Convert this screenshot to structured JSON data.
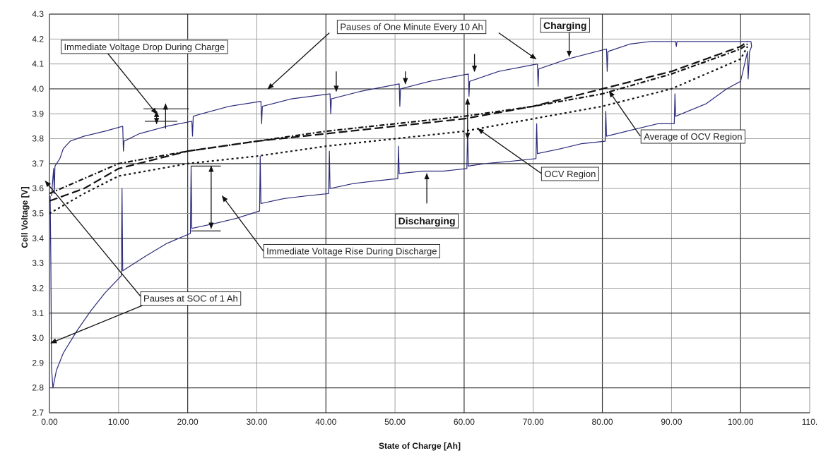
{
  "chart_data": {
    "type": "line",
    "title": "",
    "xlabel": "State of Charge [Ah]",
    "ylabel": "Cell Voltage [V]",
    "xlim": [
      0,
      110
    ],
    "ylim": [
      2.7,
      4.3
    ],
    "grid": true,
    "x_ticks": [
      0,
      10,
      20,
      30,
      40,
      50,
      60,
      70,
      80,
      90,
      100,
      110
    ],
    "x_tick_labels": [
      "0.00",
      "10.00",
      "20.00",
      "30.00",
      "40.00",
      "50.00",
      "60.00",
      "70.00",
      "80.00",
      "90.00",
      "100.00",
      "110."
    ],
    "y_ticks": [
      2.7,
      2.8,
      2.9,
      3.0,
      3.1,
      3.2,
      3.3,
      3.4,
      3.5,
      3.6,
      3.7,
      3.8,
      3.9,
      4.0,
      4.1,
      4.2,
      4.3
    ],
    "y_tick_labels": [
      "2.7",
      "2.8",
      "2.9",
      "3.0",
      "3.1",
      "3.2",
      "3.3",
      "3.4",
      "3.5",
      "3.6",
      "3.7",
      "3.8",
      "3.9",
      "4.0",
      "4.1",
      "4.2",
      "4.3"
    ],
    "series": [
      {
        "style": "solid",
        "color": "#2a2a7a",
        "points": [
          [
            0.3,
            3.57
          ],
          [
            0.6,
            3.68
          ],
          [
            0.7,
            3.58
          ],
          [
            0.8,
            3.69
          ],
          [
            1.5,
            3.72
          ],
          [
            2,
            3.76
          ],
          [
            3,
            3.79
          ],
          [
            5,
            3.81
          ],
          [
            8,
            3.83
          ],
          [
            10.6,
            3.85
          ],
          [
            10.7,
            3.75
          ],
          [
            10.8,
            3.79
          ],
          [
            13,
            3.82
          ],
          [
            17,
            3.85
          ],
          [
            20.6,
            3.87
          ],
          [
            20.7,
            3.81
          ],
          [
            20.8,
            3.89
          ],
          [
            22,
            3.9
          ],
          [
            26,
            3.93
          ],
          [
            30.6,
            3.95
          ],
          [
            30.7,
            3.86
          ],
          [
            30.8,
            3.93
          ],
          [
            35,
            3.96
          ],
          [
            40.6,
            3.98
          ],
          [
            40.7,
            3.9
          ],
          [
            40.8,
            3.96
          ],
          [
            45,
            3.99
          ],
          [
            50.6,
            4.02
          ],
          [
            50.7,
            3.93
          ],
          [
            50.8,
            4.0
          ],
          [
            55,
            4.03
          ],
          [
            60.6,
            4.06
          ],
          [
            60.7,
            3.97
          ],
          [
            60.8,
            4.03
          ],
          [
            65,
            4.07
          ],
          [
            70.6,
            4.1
          ],
          [
            70.7,
            4.01
          ],
          [
            70.8,
            4.08
          ],
          [
            75,
            4.12
          ],
          [
            80.6,
            4.16
          ],
          [
            80.7,
            4.07
          ],
          [
            80.8,
            4.15
          ],
          [
            84,
            4.18
          ],
          [
            87,
            4.19
          ],
          [
            90.6,
            4.19
          ],
          [
            90.7,
            4.17
          ],
          [
            90.8,
            4.19
          ],
          [
            101.5,
            4.19
          ],
          [
            101.6,
            4.17
          ]
        ]
      },
      {
        "style": "solid",
        "color": "#2a2a7a",
        "points": [
          [
            101.6,
            4.17
          ],
          [
            101.3,
            4.15
          ],
          [
            101.1,
            4.04
          ],
          [
            101,
            4.15
          ],
          [
            100.5,
            4.09
          ],
          [
            100,
            4.03
          ],
          [
            98,
            4.0
          ],
          [
            95,
            3.94
          ],
          [
            90.6,
            3.89
          ],
          [
            90.5,
            3.98
          ],
          [
            90.4,
            3.86
          ],
          [
            88,
            3.86
          ],
          [
            85,
            3.84
          ],
          [
            80.6,
            3.81
          ],
          [
            80.5,
            3.91
          ],
          [
            80.4,
            3.79
          ],
          [
            77,
            3.78
          ],
          [
            74,
            3.76
          ],
          [
            70.6,
            3.74
          ],
          [
            70.5,
            3.86
          ],
          [
            70.4,
            3.72
          ],
          [
            67,
            3.71
          ],
          [
            63,
            3.7
          ],
          [
            60.6,
            3.69
          ],
          [
            60.5,
            3.84
          ],
          [
            60.4,
            3.68
          ],
          [
            57,
            3.67
          ],
          [
            54,
            3.67
          ],
          [
            50.6,
            3.66
          ],
          [
            50.5,
            3.77
          ],
          [
            50.4,
            3.64
          ],
          [
            47,
            3.63
          ],
          [
            44,
            3.62
          ],
          [
            40.6,
            3.6
          ],
          [
            40.5,
            3.75
          ],
          [
            40.4,
            3.58
          ],
          [
            37,
            3.57
          ],
          [
            34,
            3.56
          ],
          [
            30.6,
            3.54
          ],
          [
            30.5,
            3.73
          ],
          [
            30.4,
            3.51
          ],
          [
            27,
            3.48
          ],
          [
            24,
            3.46
          ],
          [
            20.6,
            3.44
          ],
          [
            20.5,
            3.69
          ],
          [
            20.4,
            3.42
          ],
          [
            17,
            3.38
          ],
          [
            14,
            3.33
          ],
          [
            10.6,
            3.27
          ],
          [
            10.5,
            3.6
          ],
          [
            10.4,
            3.25
          ],
          [
            8,
            3.18
          ],
          [
            6,
            3.11
          ],
          [
            4,
            3.03
          ],
          [
            2,
            2.94
          ],
          [
            1,
            2.87
          ],
          [
            0.5,
            2.8
          ],
          [
            0.3,
            2.88
          ],
          [
            0.2,
            3.3
          ],
          [
            0.1,
            3.57
          ]
        ]
      },
      {
        "style": "dash-dot",
        "color": "#111111",
        "points": [
          [
            0,
            3.58
          ],
          [
            5,
            3.64
          ],
          [
            10,
            3.7
          ],
          [
            20,
            3.75
          ],
          [
            30,
            3.79
          ],
          [
            40,
            3.83
          ],
          [
            50,
            3.86
          ],
          [
            60,
            3.89
          ],
          [
            70,
            3.93
          ],
          [
            80,
            3.98
          ],
          [
            90,
            4.06
          ],
          [
            100,
            4.16
          ],
          [
            101,
            4.18
          ]
        ]
      },
      {
        "style": "dashed",
        "color": "#111111",
        "points": [
          [
            0,
            3.55
          ],
          [
            5,
            3.6
          ],
          [
            10,
            3.68
          ],
          [
            20,
            3.75
          ],
          [
            30,
            3.79
          ],
          [
            40,
            3.82
          ],
          [
            50,
            3.85
          ],
          [
            60,
            3.88
          ],
          [
            70,
            3.93
          ],
          [
            80,
            4.0
          ],
          [
            90,
            4.07
          ],
          [
            100,
            4.17
          ],
          [
            101,
            4.19
          ]
        ]
      },
      {
        "style": "dotted",
        "color": "#111111",
        "points": [
          [
            0,
            3.5
          ],
          [
            5,
            3.58
          ],
          [
            10,
            3.65
          ],
          [
            20,
            3.7
          ],
          [
            30,
            3.73
          ],
          [
            40,
            3.77
          ],
          [
            50,
            3.8
          ],
          [
            60,
            3.83
          ],
          [
            70,
            3.88
          ],
          [
            80,
            3.93
          ],
          [
            90,
            4.0
          ],
          [
            100,
            4.12
          ],
          [
            101,
            4.17
          ]
        ]
      }
    ],
    "annotations": [
      {
        "text": "Pauses of One Minute Every 10 Ah",
        "bold": false,
        "box": true,
        "x": 52.4,
        "y": 4.25,
        "anchor": "middle"
      },
      {
        "text": "Charging",
        "bold": true,
        "box": true,
        "x": 74.6,
        "y": 4.255,
        "anchor": "middle"
      },
      {
        "text": "Immediate Voltage Drop During Charge",
        "bold": false,
        "box": true,
        "x": 2.1,
        "y": 4.17,
        "anchor": "start"
      },
      {
        "text": "Average of OCV Region",
        "bold": false,
        "box": true,
        "x": 86,
        "y": 3.81,
        "anchor": "start"
      },
      {
        "text": "OCV Region",
        "bold": false,
        "box": true,
        "x": 71.6,
        "y": 3.66,
        "anchor": "start"
      },
      {
        "text": "Discharging",
        "bold": true,
        "box": true,
        "x": 54.6,
        "y": 3.47,
        "anchor": "middle"
      },
      {
        "text": "Immediate Voltage Rise During Discharge",
        "bold": false,
        "box": true,
        "x": 31.4,
        "y": 3.35,
        "anchor": "start"
      },
      {
        "text": "Pauses at SOC of 1 Ah",
        "bold": false,
        "box": true,
        "x": 13.6,
        "y": 3.16,
        "anchor": "start"
      }
    ],
    "arrows": [
      {
        "from": [
          40.5,
          4.225
        ],
        "to": [
          31.6,
          4.0
        ]
      },
      {
        "from": [
          41.5,
          4.07
        ],
        "to": [
          41.5,
          3.99
        ]
      },
      {
        "from": [
          51.5,
          4.07
        ],
        "to": [
          51.5,
          4.02
        ]
      },
      {
        "from": [
          61.5,
          4.14
        ],
        "to": [
          61.5,
          4.07
        ]
      },
      {
        "from": [
          65,
          4.225
        ],
        "to": [
          70.4,
          4.12
        ]
      },
      {
        "from": [
          75.2,
          4.23
        ],
        "to": [
          75.2,
          4.13
        ]
      },
      {
        "from": [
          8.2,
          4.15
        ],
        "to": [
          15.5,
          3.9
        ]
      },
      {
        "from": [
          16.8,
          3.84
        ],
        "to": [
          16.8,
          3.94
        ]
      },
      {
        "from": [
          85.5,
          3.81
        ],
        "to": [
          81,
          3.99
        ]
      },
      {
        "from": [
          71.2,
          3.66
        ],
        "to": [
          62,
          3.84
        ]
      },
      {
        "from": [
          54.6,
          3.54
        ],
        "to": [
          54.6,
          3.66
        ]
      },
      {
        "from": [
          31.2,
          3.34
        ],
        "to": [
          25,
          3.57
        ]
      },
      {
        "from": [
          13.4,
          3.16
        ],
        "to": [
          -0.6,
          3.63
        ]
      },
      {
        "from": [
          13.4,
          3.13
        ],
        "to": [
          0.2,
          2.98
        ]
      }
    ],
    "double_arrows": [
      {
        "x": 15.5,
        "y1": 3.86,
        "y2": 3.91
      },
      {
        "x": 23.4,
        "y1": 3.44,
        "y2": 3.69
      },
      {
        "x": 60.5,
        "y1": 3.8,
        "y2": 3.96
      }
    ],
    "brackets": [
      {
        "x1": 13.6,
        "x2": 20.2,
        "y": 3.92
      },
      {
        "x1": 13.8,
        "x2": 18.5,
        "y": 3.87
      },
      {
        "x1": 20.5,
        "x2": 24.8,
        "y": 3.69
      },
      {
        "x1": 20.5,
        "x2": 24.8,
        "y": 3.43
      }
    ]
  }
}
